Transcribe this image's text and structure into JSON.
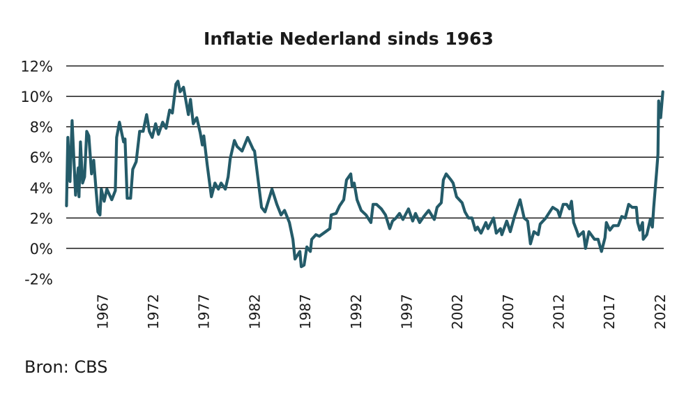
{
  "chart_data": {
    "type": "line",
    "title": "Inflatie Nederland sinds 1963",
    "xlabel": "",
    "ylabel": "",
    "source": "Bron: CBS",
    "xlim": [
      1963.4,
      2022.35
    ],
    "ylim": [
      -2,
      12
    ],
    "grid": true,
    "line_color": "#245b69",
    "y_ticks": [
      {
        "value": 12,
        "label": "12%"
      },
      {
        "value": 10,
        "label": "10%"
      },
      {
        "value": 8,
        "label": "8%"
      },
      {
        "value": 6,
        "label": "6%"
      },
      {
        "value": 4,
        "label": "4%"
      },
      {
        "value": 2,
        "label": "2%"
      },
      {
        "value": 0,
        "label": "0%"
      },
      {
        "value": -2,
        "label": "-2%"
      }
    ],
    "x_ticks": [
      "1967",
      "1972",
      "1977",
      "1982",
      "1987",
      "1992",
      "1997",
      "2002",
      "2007",
      "2012",
      "2017",
      "2022"
    ],
    "series": [
      {
        "name": "Inflatie",
        "points": [
          [
            1963.43,
            2.8
          ],
          [
            1963.56,
            7.3
          ],
          [
            1963.77,
            4.4
          ],
          [
            1963.98,
            8.4
          ],
          [
            1964.32,
            3.5
          ],
          [
            1964.59,
            5.3
          ],
          [
            1964.66,
            3.4
          ],
          [
            1964.8,
            7.0
          ],
          [
            1965.01,
            4.3
          ],
          [
            1965.21,
            4.7
          ],
          [
            1965.42,
            7.7
          ],
          [
            1965.63,
            7.4
          ],
          [
            1965.9,
            4.9
          ],
          [
            1966.11,
            5.8
          ],
          [
            1966.31,
            4.1
          ],
          [
            1966.52,
            2.4
          ],
          [
            1966.73,
            2.2
          ],
          [
            1966.86,
            3.9
          ],
          [
            1967.14,
            3.1
          ],
          [
            1967.41,
            3.9
          ],
          [
            1967.89,
            3.2
          ],
          [
            1968.24,
            3.8
          ],
          [
            1968.37,
            7.3
          ],
          [
            1968.65,
            8.3
          ],
          [
            1969.06,
            7.0
          ],
          [
            1969.2,
            7.2
          ],
          [
            1969.41,
            3.3
          ],
          [
            1969.75,
            3.3
          ],
          [
            1969.96,
            5.2
          ],
          [
            1970.3,
            5.7
          ],
          [
            1970.64,
            7.7
          ],
          [
            1970.99,
            7.7
          ],
          [
            1971.33,
            8.8
          ],
          [
            1971.6,
            7.7
          ],
          [
            1971.88,
            7.3
          ],
          [
            1972.22,
            8.2
          ],
          [
            1972.5,
            7.5
          ],
          [
            1972.91,
            8.3
          ],
          [
            1973.25,
            7.9
          ],
          [
            1973.6,
            9.1
          ],
          [
            1973.87,
            8.9
          ],
          [
            1974.22,
            10.8
          ],
          [
            1974.42,
            11.0
          ],
          [
            1974.63,
            10.3
          ],
          [
            1974.97,
            10.6
          ],
          [
            1975.45,
            8.8
          ],
          [
            1975.66,
            9.8
          ],
          [
            1975.93,
            8.2
          ],
          [
            1976.28,
            8.6
          ],
          [
            1976.62,
            7.6
          ],
          [
            1976.83,
            6.8
          ],
          [
            1976.97,
            7.4
          ],
          [
            1977.31,
            5.5
          ],
          [
            1977.72,
            3.4
          ],
          [
            1978.07,
            4.3
          ],
          [
            1978.41,
            3.9
          ],
          [
            1978.68,
            4.3
          ],
          [
            1979.1,
            3.9
          ],
          [
            1979.37,
            4.7
          ],
          [
            1979.58,
            5.9
          ],
          [
            1979.99,
            7.1
          ],
          [
            1980.26,
            6.7
          ],
          [
            1980.75,
            6.4
          ],
          [
            1981.3,
            7.3
          ],
          [
            1981.85,
            6.5
          ],
          [
            1981.98,
            6.4
          ],
          [
            1982.67,
            2.7
          ],
          [
            1983.01,
            2.4
          ],
          [
            1983.7,
            3.9
          ],
          [
            1984.18,
            2.9
          ],
          [
            1984.59,
            2.2
          ],
          [
            1984.94,
            2.5
          ],
          [
            1985.42,
            1.7
          ],
          [
            1985.76,
            0.6
          ],
          [
            1985.97,
            -0.7
          ],
          [
            1986.45,
            -0.2
          ],
          [
            1986.59,
            -1.2
          ],
          [
            1986.86,
            -1.1
          ],
          [
            1987.14,
            0.1
          ],
          [
            1987.48,
            -0.2
          ],
          [
            1987.62,
            0.6
          ],
          [
            1988.03,
            0.9
          ],
          [
            1988.37,
            0.8
          ],
          [
            1988.99,
            1.1
          ],
          [
            1989.41,
            1.3
          ],
          [
            1989.54,
            2.2
          ],
          [
            1990.02,
            2.3
          ],
          [
            1990.37,
            2.8
          ],
          [
            1990.78,
            3.2
          ],
          [
            1991.05,
            4.5
          ],
          [
            1991.47,
            4.9
          ],
          [
            1991.6,
            4.1
          ],
          [
            1991.81,
            4.3
          ],
          [
            1992.09,
            3.2
          ],
          [
            1992.5,
            2.5
          ],
          [
            1992.98,
            2.2
          ],
          [
            1993.46,
            1.7
          ],
          [
            1993.67,
            2.9
          ],
          [
            1994.01,
            2.9
          ],
          [
            1994.49,
            2.6
          ],
          [
            1994.9,
            2.2
          ],
          [
            1995.32,
            1.3
          ],
          [
            1995.59,
            1.8
          ],
          [
            1995.93,
            2.0
          ],
          [
            1996.28,
            2.3
          ],
          [
            1996.62,
            1.9
          ],
          [
            1997.17,
            2.6
          ],
          [
            1997.58,
            1.8
          ],
          [
            1997.86,
            2.3
          ],
          [
            1998.27,
            1.7
          ],
          [
            1998.68,
            2.1
          ],
          [
            1999.16,
            2.5
          ],
          [
            1999.71,
            1.9
          ],
          [
            1999.99,
            2.7
          ],
          [
            2000.4,
            3.0
          ],
          [
            2000.61,
            4.5
          ],
          [
            2000.88,
            4.9
          ],
          [
            2001.36,
            4.5
          ],
          [
            2001.57,
            4.3
          ],
          [
            2001.91,
            3.4
          ],
          [
            2002.46,
            3.0
          ],
          [
            2002.74,
            2.4
          ],
          [
            2003.08,
            2.0
          ],
          [
            2003.43,
            2.0
          ],
          [
            2003.77,
            1.2
          ],
          [
            2003.98,
            1.4
          ],
          [
            2004.32,
            1.0
          ],
          [
            2004.8,
            1.7
          ],
          [
            2005.01,
            1.3
          ],
          [
            2005.56,
            2.0
          ],
          [
            2005.83,
            1.0
          ],
          [
            2006.24,
            1.3
          ],
          [
            2006.38,
            0.9
          ],
          [
            2006.86,
            1.8
          ],
          [
            2007.21,
            1.1
          ],
          [
            2007.62,
            2.1
          ],
          [
            2008.17,
            3.2
          ],
          [
            2008.58,
            2.0
          ],
          [
            2008.92,
            1.8
          ],
          [
            2009.2,
            0.3
          ],
          [
            2009.54,
            1.1
          ],
          [
            2009.96,
            0.9
          ],
          [
            2010.16,
            1.6
          ],
          [
            2010.71,
            2.0
          ],
          [
            2011.19,
            2.5
          ],
          [
            2011.4,
            2.7
          ],
          [
            2011.88,
            2.5
          ],
          [
            2012.09,
            2.1
          ],
          [
            2012.43,
            2.9
          ],
          [
            2012.77,
            2.9
          ],
          [
            2013.05,
            2.6
          ],
          [
            2013.25,
            3.1
          ],
          [
            2013.46,
            1.7
          ],
          [
            2013.8,
            1.1
          ],
          [
            2013.94,
            0.8
          ],
          [
            2014.42,
            1.1
          ],
          [
            2014.63,
            0.0
          ],
          [
            2014.97,
            1.1
          ],
          [
            2015.52,
            0.6
          ],
          [
            2015.87,
            0.6
          ],
          [
            2016.21,
            -0.2
          ],
          [
            2016.55,
            0.7
          ],
          [
            2016.69,
            1.7
          ],
          [
            2017.03,
            1.2
          ],
          [
            2017.38,
            1.5
          ],
          [
            2017.86,
            1.5
          ],
          [
            2018.2,
            2.1
          ],
          [
            2018.55,
            2.0
          ],
          [
            2018.89,
            2.9
          ],
          [
            2019.23,
            2.7
          ],
          [
            2019.65,
            2.7
          ],
          [
            2019.78,
            1.7
          ],
          [
            2019.99,
            1.2
          ],
          [
            2020.26,
            1.7
          ],
          [
            2020.33,
            0.6
          ],
          [
            2020.68,
            0.9
          ],
          [
            2021.02,
            1.9
          ],
          [
            2021.23,
            1.4
          ],
          [
            2021.36,
            2.7
          ],
          [
            2021.64,
            5.0
          ],
          [
            2021.78,
            6.2
          ],
          [
            2021.85,
            9.7
          ],
          [
            2022.05,
            8.6
          ],
          [
            2022.26,
            10.3
          ]
        ]
      }
    ]
  }
}
